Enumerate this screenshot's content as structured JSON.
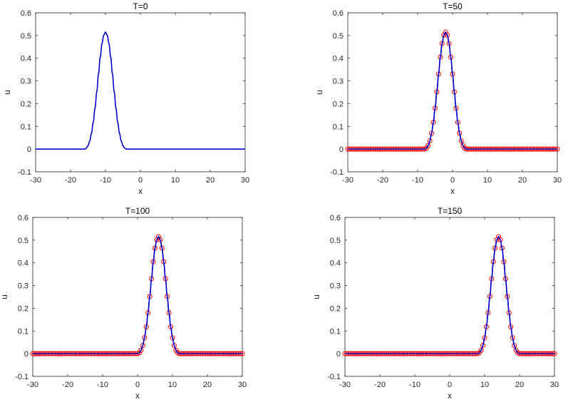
{
  "chart_data": [
    {
      "type": "line",
      "title": "T=0",
      "xlabel": "x",
      "ylabel": "u",
      "xlim": [
        -30,
        30
      ],
      "ylim": [
        -0.1,
        0.6
      ],
      "xticks": [
        "-30",
        "-20",
        "-10",
        "0",
        "10",
        "20",
        "30"
      ],
      "yticks": [
        "-0.1",
        "0",
        "0.1",
        "0.2",
        "0.3",
        "0.4",
        "0.5",
        "0.6"
      ],
      "grid": false,
      "series": [
        {
          "kind": "line",
          "color": "#0000CC",
          "center": -10,
          "amplitude": 0.515,
          "x_start": -30,
          "x_end": 30,
          "profile_x": [
            0,
            0.5,
            1,
            1.5,
            2,
            2.5,
            3,
            3.5,
            4,
            4.5,
            5,
            5.5,
            6
          ],
          "profile_u": [
            0.515,
            0.502,
            0.465,
            0.405,
            0.33,
            0.252,
            0.18,
            0.118,
            0.07,
            0.036,
            0.015,
            0.004,
            0
          ]
        }
      ]
    },
    {
      "type": "line",
      "title": "T=50",
      "xlabel": "x",
      "ylabel": "u",
      "xlim": [
        -30,
        30
      ],
      "ylim": [
        -0.1,
        0.6
      ],
      "xticks": [
        "-30",
        "-20",
        "-10",
        "0",
        "10",
        "20",
        "30"
      ],
      "yticks": [
        "-0.1",
        "0",
        "0.1",
        "0.2",
        "0.3",
        "0.4",
        "0.5",
        "0.6"
      ],
      "grid": false,
      "series": [
        {
          "kind": "line",
          "color": "#0000CC",
          "center": -2,
          "amplitude": 0.515,
          "x_start": -30,
          "x_end": 30,
          "profile_x": [
            0,
            0.5,
            1,
            1.5,
            2,
            2.5,
            3,
            3.5,
            4,
            4.5,
            5,
            5.5,
            6
          ],
          "profile_u": [
            0.515,
            0.502,
            0.465,
            0.405,
            0.33,
            0.252,
            0.18,
            0.118,
            0.07,
            0.036,
            0.015,
            0.004,
            0
          ]
        },
        {
          "kind": "markers",
          "marker": "circle",
          "color": "#FF0000",
          "center": -2,
          "amplitude": 0.515,
          "x_start": -30,
          "x_end": 30,
          "step": 0.5,
          "profile_x": [
            0,
            0.5,
            1,
            1.5,
            2,
            2.5,
            3,
            3.5,
            4,
            4.5,
            5,
            5.5,
            6
          ],
          "profile_u": [
            0.515,
            0.502,
            0.465,
            0.405,
            0.33,
            0.252,
            0.18,
            0.118,
            0.07,
            0.036,
            0.015,
            0.004,
            0
          ]
        }
      ]
    },
    {
      "type": "line",
      "title": "T=100",
      "xlabel": "x",
      "ylabel": "u",
      "xlim": [
        -30,
        30
      ],
      "ylim": [
        -0.1,
        0.6
      ],
      "xticks": [
        "-30",
        "-20",
        "-10",
        "0",
        "10",
        "20",
        "30"
      ],
      "yticks": [
        "-0.1",
        "0",
        "0.1",
        "0.2",
        "0.3",
        "0.4",
        "0.5",
        "0.6"
      ],
      "grid": false,
      "series": [
        {
          "kind": "line",
          "color": "#0000CC",
          "center": 6,
          "amplitude": 0.515,
          "x_start": -30,
          "x_end": 30,
          "profile_x": [
            0,
            0.5,
            1,
            1.5,
            2,
            2.5,
            3,
            3.5,
            4,
            4.5,
            5,
            5.5,
            6
          ],
          "profile_u": [
            0.515,
            0.502,
            0.465,
            0.405,
            0.33,
            0.252,
            0.18,
            0.118,
            0.07,
            0.036,
            0.015,
            0.004,
            0
          ]
        },
        {
          "kind": "markers",
          "marker": "circle",
          "color": "#FF0000",
          "center": 6,
          "amplitude": 0.515,
          "x_start": -30,
          "x_end": 30,
          "step": 0.5,
          "profile_x": [
            0,
            0.5,
            1,
            1.5,
            2,
            2.5,
            3,
            3.5,
            4,
            4.5,
            5,
            5.5,
            6
          ],
          "profile_u": [
            0.515,
            0.502,
            0.465,
            0.405,
            0.33,
            0.252,
            0.18,
            0.118,
            0.07,
            0.036,
            0.015,
            0.004,
            0
          ]
        }
      ]
    },
    {
      "type": "line",
      "title": "T=150",
      "xlabel": "x",
      "ylabel": "u",
      "xlim": [
        -30,
        30
      ],
      "ylim": [
        -0.1,
        0.6
      ],
      "xticks": [
        "-30",
        "-20",
        "-10",
        "0",
        "10",
        "20",
        "30"
      ],
      "yticks": [
        "-0.1",
        "0",
        "0.1",
        "0.2",
        "0.3",
        "0.4",
        "0.5",
        "0.6"
      ],
      "grid": false,
      "series": [
        {
          "kind": "line",
          "color": "#0000CC",
          "center": 14,
          "amplitude": 0.515,
          "x_start": -30,
          "x_end": 30,
          "profile_x": [
            0,
            0.5,
            1,
            1.5,
            2,
            2.5,
            3,
            3.5,
            4,
            4.5,
            5,
            5.5,
            6
          ],
          "profile_u": [
            0.515,
            0.502,
            0.465,
            0.405,
            0.33,
            0.252,
            0.18,
            0.118,
            0.07,
            0.036,
            0.015,
            0.004,
            0
          ]
        },
        {
          "kind": "markers",
          "marker": "circle",
          "color": "#FF0000",
          "center": 14,
          "amplitude": 0.515,
          "x_start": -30,
          "x_end": 30,
          "step": 0.5,
          "profile_x": [
            0,
            0.5,
            1,
            1.5,
            2,
            2.5,
            3,
            3.5,
            4,
            4.5,
            5,
            5.5,
            6
          ],
          "profile_u": [
            0.515,
            0.502,
            0.465,
            0.405,
            0.33,
            0.252,
            0.18,
            0.118,
            0.07,
            0.036,
            0.015,
            0.004,
            0
          ]
        }
      ]
    }
  ]
}
